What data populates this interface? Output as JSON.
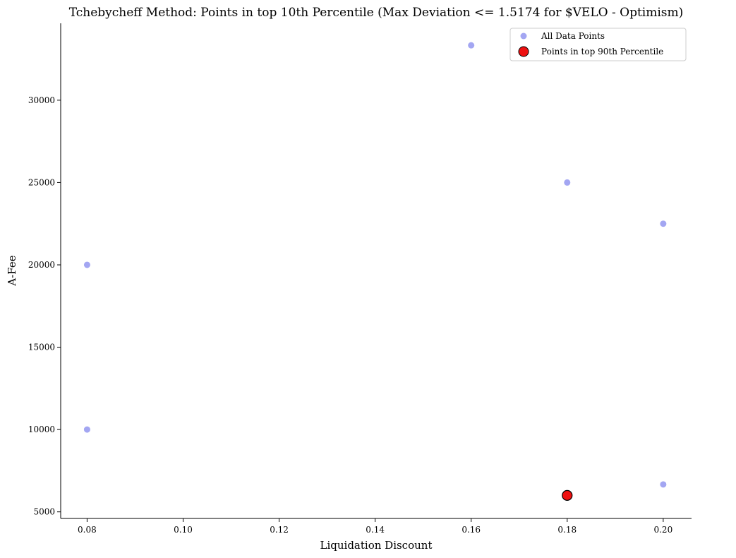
{
  "chart_data": {
    "type": "scatter",
    "title": "Tchebycheff Method: Points in top 10th Percentile (Max Deviation <= 1.5174 for $VELO - Optimism)",
    "xlabel": "Liquidation Discount",
    "ylabel": "A-Fee",
    "xlim": [
      0.0745,
      0.2059
    ],
    "ylim": [
      4600,
      34670
    ],
    "x_ticks": [
      0.08,
      0.1,
      0.12,
      0.14,
      0.16,
      0.18,
      0.2
    ],
    "x_tick_labels": [
      "0.08",
      "0.10",
      "0.12",
      "0.14",
      "0.16",
      "0.18",
      "0.20"
    ],
    "y_ticks": [
      5000,
      10000,
      15000,
      20000,
      25000,
      30000
    ],
    "y_tick_labels": [
      "5000",
      "10000",
      "15000",
      "20000",
      "25000",
      "30000"
    ],
    "grid": false,
    "legend_position": "top-right",
    "series": [
      {
        "name": "All Data Points",
        "color": "#a3a6f2",
        "points": [
          {
            "x": 0.08,
            "y": 10000
          },
          {
            "x": 0.08,
            "y": 20000
          },
          {
            "x": 0.16,
            "y": 33333
          },
          {
            "x": 0.18,
            "y": 25000
          },
          {
            "x": 0.2,
            "y": 22500
          },
          {
            "x": 0.2,
            "y": 6667
          }
        ]
      },
      {
        "name": "Points in top 90th Percentile",
        "color": "#ee1111",
        "edge_color": "#000000",
        "points": [
          {
            "x": 0.18,
            "y": 6000
          }
        ]
      }
    ]
  }
}
